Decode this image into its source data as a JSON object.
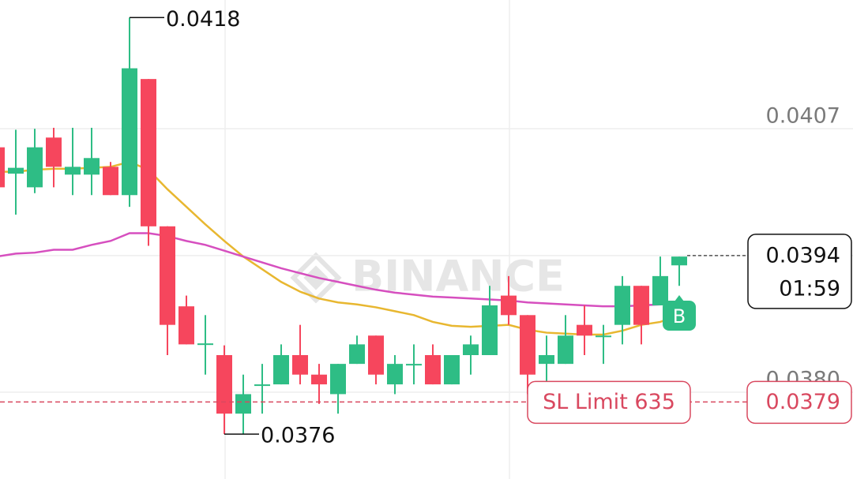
{
  "chart_data": {
    "type": "candlestick",
    "watermark": "BINANCE",
    "up_color": "#2ebd85",
    "down_color": "#f6465d",
    "open": [
      0.04051,
      0.04024,
      0.0401,
      0.04061,
      0.04023,
      0.04023,
      0.04031,
      0.04002,
      0.04121,
      0.0397,
      0.03888,
      0.0385,
      0.03838,
      0.03778,
      0.03808,
      0.03808,
      0.03838,
      0.03818,
      0.03798,
      0.03829,
      0.03858,
      0.03808,
      0.03829,
      0.03838,
      0.03808,
      0.03838,
      0.03838,
      0.03899,
      0.03879,
      0.03829,
      0.03829,
      0.03869,
      0.03858,
      0.03869,
      0.03909,
      0.03889,
      0.0393
    ],
    "high": [
      0.04051,
      0.04069,
      0.0407,
      0.04071,
      0.04071,
      0.04071,
      0.04036,
      0.04184,
      0.04121,
      0.0397,
      0.03899,
      0.03879,
      0.03848,
      0.03818,
      0.03829,
      0.03849,
      0.03869,
      0.03829,
      0.03829,
      0.03858,
      0.03858,
      0.03838,
      0.03849,
      0.03849,
      0.03838,
      0.03858,
      0.03909,
      0.03919,
      0.03879,
      0.03858,
      0.03879,
      0.03889,
      0.03869,
      0.03919,
      0.03909,
      0.03939,
      0.03939
    ],
    "low": [
      0.0401,
      0.03982,
      0.04004,
      0.0401,
      0.04002,
      0.04002,
      0.04002,
      0.0399,
      0.0395,
      0.03838,
      0.03849,
      0.03818,
      0.03757,
      0.03757,
      0.03778,
      0.03808,
      0.03808,
      0.03788,
      0.03778,
      0.03829,
      0.03808,
      0.03798,
      0.03808,
      0.03808,
      0.03808,
      0.03818,
      0.03838,
      0.03869,
      0.03798,
      0.03808,
      0.03829,
      0.03838,
      0.03829,
      0.03849,
      0.03849,
      0.03889,
      0.03909
    ],
    "close": [
      0.0401,
      0.0403,
      0.04051,
      0.04031,
      0.04031,
      0.0404,
      0.04002,
      0.04132,
      0.0397,
      0.03869,
      0.03849,
      0.0385,
      0.03778,
      0.03798,
      0.03808,
      0.03838,
      0.03818,
      0.03808,
      0.03829,
      0.03849,
      0.03818,
      0.03829,
      0.03829,
      0.03808,
      0.03838,
      0.03849,
      0.03889,
      0.03879,
      0.03818,
      0.03838,
      0.03858,
      0.03858,
      0.03858,
      0.03909,
      0.03869,
      0.03919,
      0.03939
    ],
    "moving_averages": [
      {
        "color": "#e8b730",
        "values": [
          0.04026,
          0.04026,
          0.04028,
          0.04029,
          0.04029,
          0.0403,
          0.04031,
          0.04036,
          0.04028,
          0.04008,
          0.0399,
          0.03972,
          0.03955,
          0.03939,
          0.03926,
          0.03913,
          0.03903,
          0.03896,
          0.03892,
          0.0389,
          0.03887,
          0.03883,
          0.03879,
          0.03872,
          0.03868,
          0.03867,
          0.03868,
          0.03869,
          0.03864,
          0.03861,
          0.0386,
          0.03859,
          0.03859,
          0.03863,
          0.03869,
          0.03872,
          0.03879
        ]
      },
      {
        "color": "#d64fbf",
        "values": [
          0.03939,
          0.03942,
          0.03943,
          0.03946,
          0.03946,
          0.03951,
          0.03955,
          0.03963,
          0.03963,
          0.0396,
          0.03955,
          0.03951,
          0.03945,
          0.03939,
          0.03933,
          0.03927,
          0.03922,
          0.03917,
          0.03913,
          0.03909,
          0.03905,
          0.03902,
          0.039,
          0.03898,
          0.03897,
          0.03896,
          0.03895,
          0.03894,
          0.03892,
          0.03891,
          0.0389,
          0.03889,
          0.03888,
          0.03888,
          0.03889,
          0.0389,
          0.03891
        ]
      }
    ],
    "ylim": [
      0.03711,
      0.04202
    ],
    "yticks": [
      0.0407,
      0.0394,
      {
        "value": 0.038,
        "label": "0.0380"
      }
    ],
    "grid": true,
    "high_label": 0.0418,
    "low_label": 0.0376,
    "last_price": 0.0394,
    "countdown": "01:59",
    "stop_loss": {
      "label": "SL Limit 635",
      "price": 0.0379,
      "color": "#d9485f"
    },
    "trade_marker": "B"
  }
}
